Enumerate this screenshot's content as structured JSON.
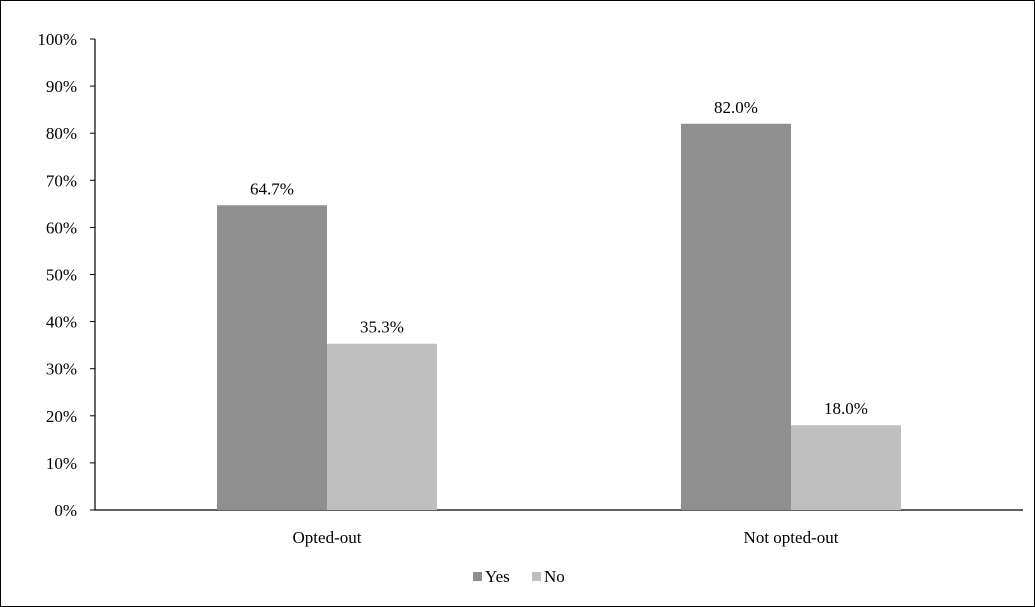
{
  "chart_data": {
    "type": "bar",
    "categories": [
      "Opted-out",
      "Not opted-out"
    ],
    "series": [
      {
        "name": "Yes",
        "values": [
          64.7,
          82.0
        ],
        "color": "#8f8f8f"
      },
      {
        "name": "No",
        "values": [
          35.3,
          18.0
        ],
        "color": "#bfbfbf"
      }
    ],
    "data_labels": [
      [
        "64.7%",
        "82.0%"
      ],
      [
        "35.3%",
        "18.0%"
      ]
    ],
    "yticks": [
      0,
      10,
      20,
      30,
      40,
      50,
      60,
      70,
      80,
      90,
      100
    ],
    "ytick_labels": [
      "0%",
      "10%",
      "20%",
      "30%",
      "40%",
      "50%",
      "60%",
      "70%",
      "80%",
      "90%",
      "100%"
    ],
    "ylim": [
      0,
      100
    ],
    "grid": false,
    "legend": "bottom-center",
    "title": "",
    "xlabel": "",
    "ylabel": ""
  }
}
